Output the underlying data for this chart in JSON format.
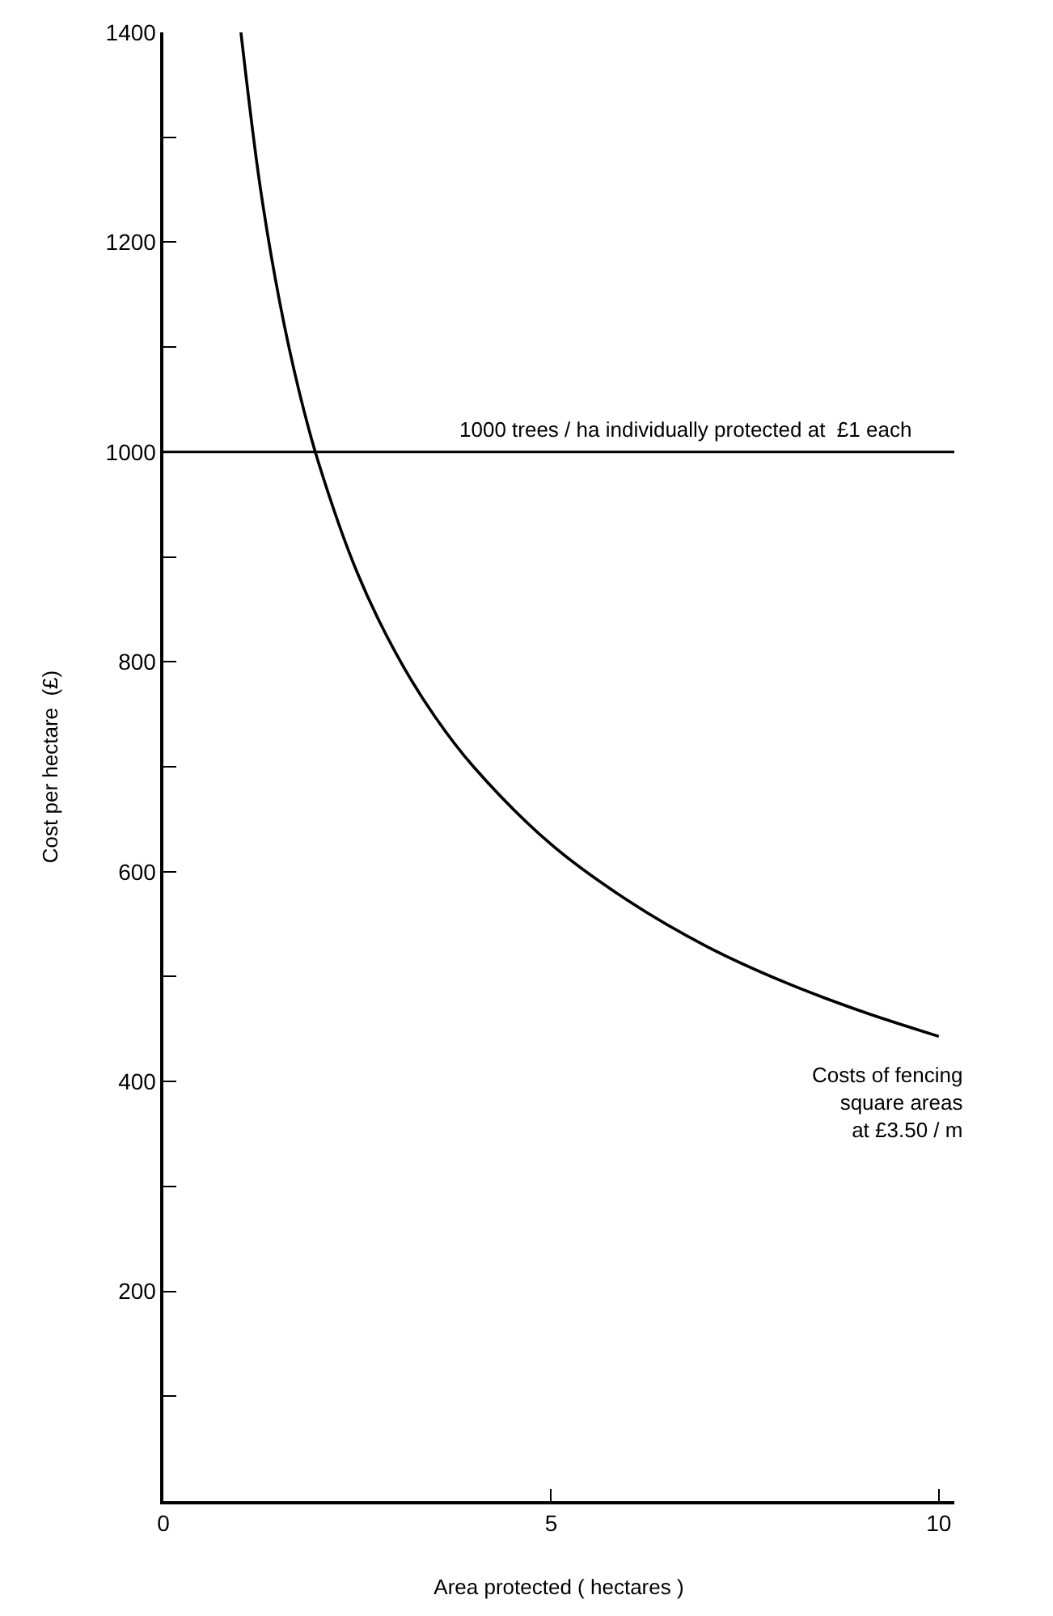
{
  "chart_data": {
    "type": "line",
    "xlabel": "Area protected ( hectares )",
    "ylabel": "Cost per hectare  (£)",
    "x": [
      1,
      1.25,
      1.5,
      1.75,
      2,
      2.5,
      3,
      3.5,
      4,
      5,
      6,
      7,
      8,
      9,
      10
    ],
    "series": [
      {
        "color": "#000000",
        "values": [
          1400,
          1252,
          1143,
          1058,
          990,
          885,
          808,
          748,
          700,
          626,
          572,
          529,
          495,
          467,
          443
        ]
      }
    ],
    "xlim": [
      0,
      10.2
    ],
    "xticks": [
      0,
      5,
      10
    ],
    "ylim": [
      0,
      1400
    ],
    "yticks": [
      {
        "value": 100,
        "label": null
      },
      200,
      {
        "value": 300,
        "label": null
      },
      400,
      {
        "value": 500,
        "label": null
      },
      600,
      {
        "value": 700,
        "label": null
      },
      800,
      {
        "value": 900,
        "label": null
      },
      1000,
      {
        "value": 1100,
        "label": null
      },
      1200,
      {
        "value": 1300,
        "label": null
      },
      1400
    ],
    "ref_lines": [
      {
        "axis": "y",
        "value": 1000,
        "label": "1000 trees / ha individually protected at  £1 each",
        "color": "#000000"
      }
    ],
    "annotations": [
      {
        "text": "Costs of fencing\nsquare areas\nat £3.50 / m",
        "x": 10,
        "y": 443
      }
    ],
    "marker": "none",
    "line_style": "solid"
  }
}
